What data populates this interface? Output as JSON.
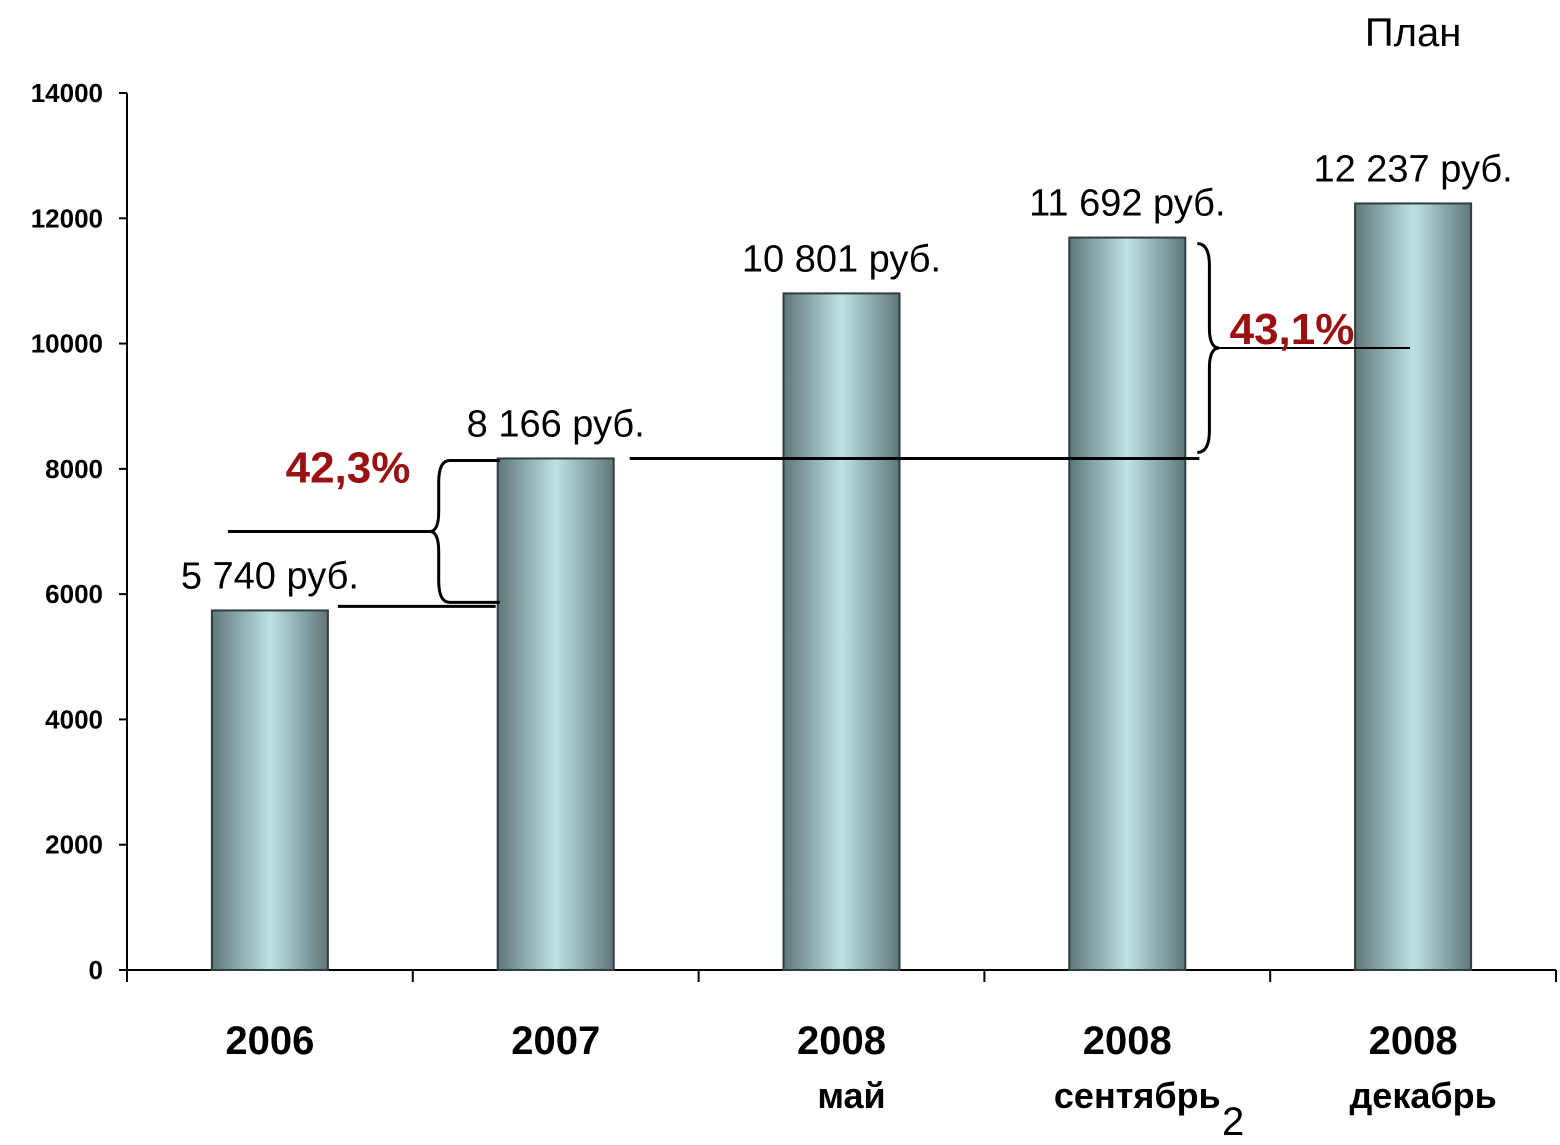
{
  "chart_data": {
    "type": "bar",
    "categories": [
      "2006",
      "2007",
      "2008 май",
      "2008 сентябрь",
      "2008 декабрь"
    ],
    "category_lines": [
      [
        "2006"
      ],
      [
        "2007"
      ],
      [
        "2008",
        "май"
      ],
      [
        "2008",
        "сентябрь"
      ],
      [
        "2008",
        "декабрь"
      ]
    ],
    "values": [
      5740,
      8166,
      10801,
      11692,
      12237
    ],
    "data_labels": [
      "5 740 руб.",
      "8 166 руб.",
      "10 801 руб.",
      "11 692 руб.",
      "12 237 руб."
    ],
    "ylim": [
      0,
      14000
    ],
    "yticks": [
      0,
      2000,
      4000,
      6000,
      8000,
      10000,
      12000,
      14000
    ],
    "grid": false,
    "legend": "none",
    "annotations": [
      {
        "text": "42,3%",
        "from_category": "2006",
        "to_category": "2007",
        "from_value": 5740,
        "to_value": 8166
      },
      {
        "text": "43,1%",
        "from_category": "2007",
        "to_category": "2008 сентябрь",
        "from_value": 8166,
        "to_value": 11692
      }
    ],
    "plan_label": "План",
    "plan_category": "2008 декабрь",
    "colors": {
      "bar_edge": "#5f7778",
      "bar_center": "#bde3e6",
      "annotation": "#9b1010",
      "axis": "#000000"
    }
  },
  "page_number": "2"
}
